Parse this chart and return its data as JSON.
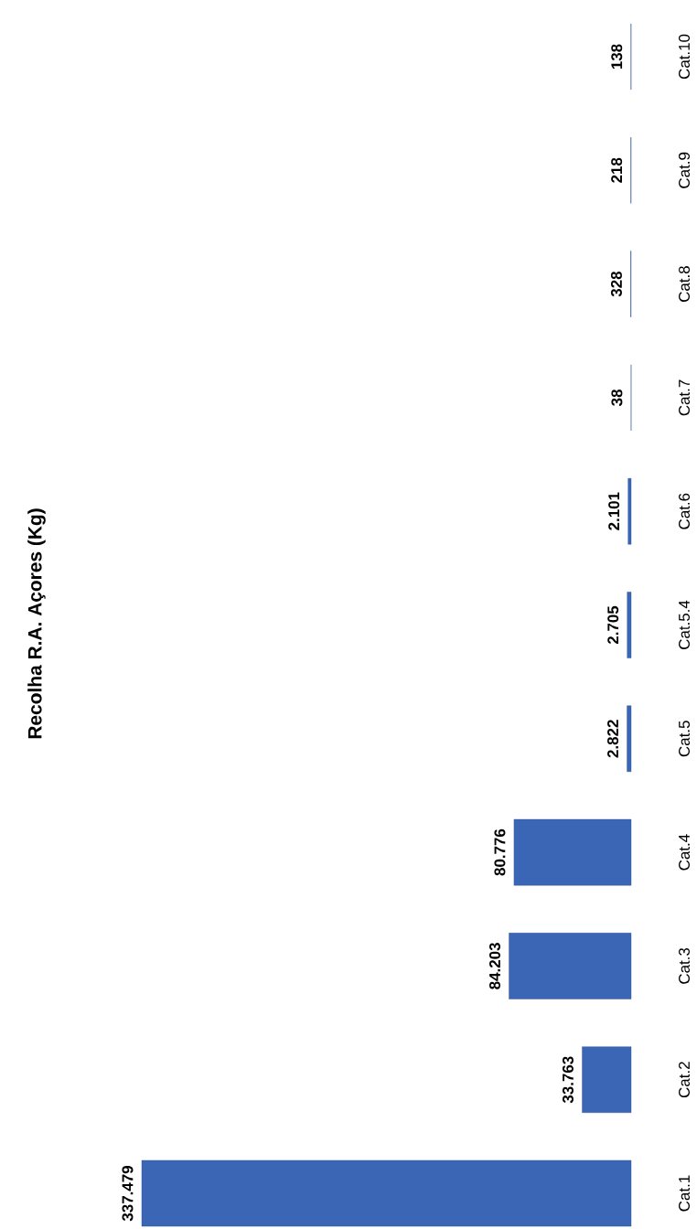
{
  "chart_data": {
    "type": "bar",
    "orientation": "horizontal",
    "title": "Recolha R.A. Açores (Kg)",
    "categories": [
      "Cat.10",
      "Cat.9",
      "Cat.8",
      "Cat.7",
      "Cat.6",
      "Cat.5.4",
      "Cat.5",
      "Cat.4",
      "Cat.3",
      "Cat.2",
      "Cat.1"
    ],
    "values": [
      138,
      218,
      328,
      38,
      2101,
      2705,
      2822,
      80776,
      84203,
      33763,
      337479
    ],
    "value_labels": [
      "138",
      "218",
      "328",
      "38",
      "2.101",
      "2.705",
      "2.822",
      "80.776",
      "84.203",
      "33.763",
      "337.479"
    ],
    "color": "#3a66b5"
  }
}
